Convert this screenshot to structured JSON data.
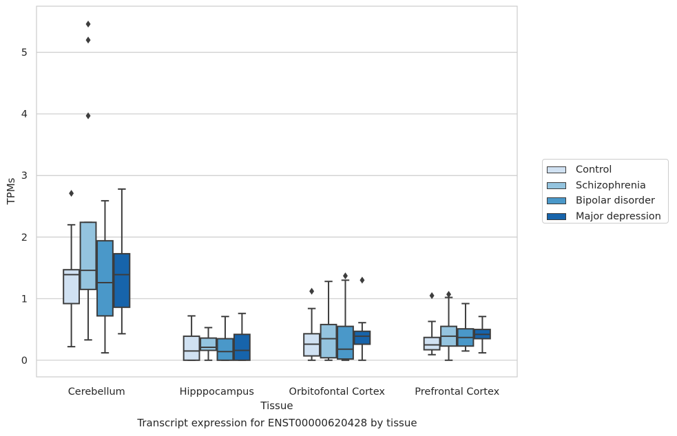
{
  "caption": "Transcript expression for ENST00000620428 by tissue",
  "chart_data": {
    "type": "box",
    "xlabel": "Tissue",
    "ylabel": "TPMs",
    "ylim": [
      -0.27,
      5.75
    ],
    "yticks": [
      0,
      1,
      2,
      3,
      4,
      5
    ],
    "grid": "horizontal",
    "legend_position": "right",
    "categories": [
      "Cerebellum",
      "Hipppocampus",
      "Orbitofontal Cortex",
      "Prefrontal Cortex"
    ],
    "series": [
      {
        "name": "Control",
        "color": "#d0e1f2",
        "boxes": [
          {
            "whislo": 0.22,
            "q1": 0.92,
            "med": 1.39,
            "q3": 1.47,
            "whishi": 2.2,
            "fliers": [
              2.71
            ]
          },
          {
            "whislo": 0.0,
            "q1": 0.0,
            "med": 0.15,
            "q3": 0.39,
            "whishi": 0.72,
            "fliers": []
          },
          {
            "whislo": 0.0,
            "q1": 0.07,
            "med": 0.26,
            "q3": 0.43,
            "whishi": 0.84,
            "fliers": [
              1.12
            ]
          },
          {
            "whislo": 0.09,
            "q1": 0.17,
            "med": 0.25,
            "q3": 0.37,
            "whishi": 0.63,
            "fliers": [
              1.05
            ]
          }
        ]
      },
      {
        "name": "Schizophrenia",
        "color": "#94c4df",
        "boxes": [
          {
            "whislo": 0.33,
            "q1": 1.15,
            "med": 1.46,
            "q3": 2.24,
            "whishi": 2.24,
            "fliers": [
              3.97,
              5.2,
              5.46
            ]
          },
          {
            "whislo": 0.0,
            "q1": 0.16,
            "med": 0.21,
            "q3": 0.36,
            "whishi": 0.53,
            "fliers": []
          },
          {
            "whislo": 0.0,
            "q1": 0.04,
            "med": 0.35,
            "q3": 0.58,
            "whishi": 1.28,
            "fliers": []
          },
          {
            "whislo": 0.0,
            "q1": 0.23,
            "med": 0.39,
            "q3": 0.55,
            "whishi": 1.02,
            "fliers": [
              1.07
            ]
          }
        ]
      },
      {
        "name": "Bipolar disorder",
        "color": "#4a98c9",
        "boxes": [
          {
            "whislo": 0.12,
            "q1": 0.72,
            "med": 1.26,
            "q3": 1.94,
            "whishi": 2.59,
            "fliers": []
          },
          {
            "whislo": 0.0,
            "q1": 0.0,
            "med": 0.14,
            "q3": 0.35,
            "whishi": 0.71,
            "fliers": []
          },
          {
            "whislo": 0.0,
            "q1": 0.02,
            "med": 0.18,
            "q3": 0.55,
            "whishi": 1.3,
            "fliers": [
              1.37
            ]
          },
          {
            "whislo": 0.15,
            "q1": 0.23,
            "med": 0.37,
            "q3": 0.51,
            "whishi": 0.92,
            "fliers": []
          }
        ]
      },
      {
        "name": "Major depression",
        "color": "#1764ab",
        "boxes": [
          {
            "whislo": 0.43,
            "q1": 0.86,
            "med": 1.39,
            "q3": 1.73,
            "whishi": 2.78,
            "fliers": []
          },
          {
            "whislo": 0.0,
            "q1": 0.0,
            "med": 0.16,
            "q3": 0.42,
            "whishi": 0.76,
            "fliers": []
          },
          {
            "whislo": 0.0,
            "q1": 0.26,
            "med": 0.39,
            "q3": 0.47,
            "whishi": 0.61,
            "fliers": [
              1.3
            ]
          },
          {
            "whislo": 0.12,
            "q1": 0.35,
            "med": 0.42,
            "q3": 0.5,
            "whishi": 0.71,
            "fliers": []
          }
        ]
      }
    ]
  }
}
